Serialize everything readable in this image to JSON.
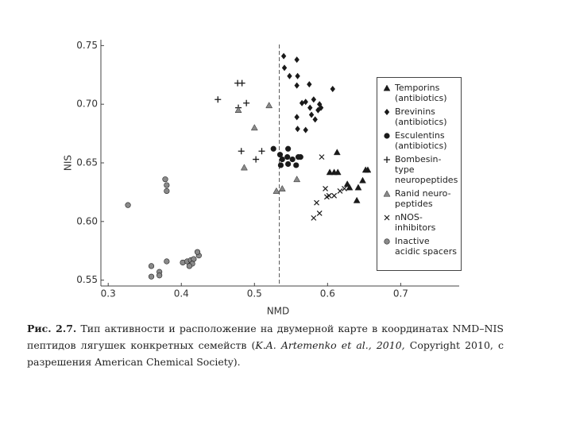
{
  "chart_data": {
    "type": "scatter",
    "xlabel": "NMD",
    "ylabel": "NIS",
    "xlim": [
      0.29,
      0.78
    ],
    "ylim": [
      0.545,
      0.755
    ],
    "xticks": [
      {
        "value": 0.3,
        "label": "0.3"
      },
      {
        "value": 0.4,
        "label": "0.4"
      },
      {
        "value": 0.5,
        "label": "0.5"
      },
      {
        "value": 0.6,
        "label": "0.6"
      },
      {
        "value": 0.7,
        "label": "0.7"
      }
    ],
    "yticks": [
      {
        "value": 0.55,
        "label": "0.55"
      },
      {
        "value": 0.6,
        "label": "0.60"
      },
      {
        "value": 0.65,
        "label": "0.65"
      },
      {
        "value": 0.7,
        "label": "0.70"
      },
      {
        "value": 0.75,
        "label": "0.75"
      }
    ],
    "vline": 0.534,
    "series": [
      {
        "name": "Temporins (antibiotics)",
        "marker": "triangle",
        "color": "#1a1a1a",
        "x": [
          0.613,
          0.603,
          0.609,
          0.614,
          0.627,
          0.63,
          0.642,
          0.648,
          0.652,
          0.655,
          0.64
        ],
        "values": [
          0.659,
          0.642,
          0.642,
          0.642,
          0.632,
          0.629,
          0.629,
          0.635,
          0.644,
          0.644,
          0.618
        ]
      },
      {
        "name": "Brevinins (antibiotics)",
        "marker": "diamond",
        "color": "#1a1a1a",
        "x": [
          0.54,
          0.558,
          0.541,
          0.548,
          0.559,
          0.558,
          0.575,
          0.607,
          0.565,
          0.57,
          0.576,
          0.581,
          0.587,
          0.589,
          0.578,
          0.558,
          0.559,
          0.57,
          0.583,
          0.591
        ],
        "values": [
          0.741,
          0.738,
          0.731,
          0.724,
          0.724,
          0.716,
          0.717,
          0.713,
          0.701,
          0.702,
          0.697,
          0.704,
          0.695,
          0.7,
          0.691,
          0.689,
          0.679,
          0.678,
          0.687,
          0.697
        ]
      },
      {
        "name": "Esculentins (antibiotics)",
        "marker": "circle",
        "color": "#1a1a1a",
        "x": [
          0.526,
          0.535,
          0.538,
          0.545,
          0.552,
          0.56,
          0.546,
          0.557,
          0.536,
          0.563,
          0.546
        ],
        "values": [
          0.662,
          0.657,
          0.653,
          0.655,
          0.653,
          0.655,
          0.649,
          0.648,
          0.648,
          0.655,
          0.662
        ]
      },
      {
        "name": "Bombesin-type neuropeptides",
        "marker": "plus",
        "color": "#1a1a1a",
        "x": [
          0.477,
          0.483,
          0.45,
          0.478,
          0.489,
          0.482,
          0.51,
          0.502
        ],
        "values": [
          0.718,
          0.718,
          0.704,
          0.697,
          0.701,
          0.66,
          0.66,
          0.653
        ]
      },
      {
        "name": "Ranid neuro-peptides",
        "marker": "triangle",
        "color": "#8a8a8a",
        "x": [
          0.478,
          0.52,
          0.5,
          0.486,
          0.53,
          0.538,
          0.558
        ],
        "values": [
          0.695,
          0.699,
          0.68,
          0.646,
          0.626,
          0.628,
          0.636
        ]
      },
      {
        "name": "nNOS-inhibitors",
        "marker": "cross",
        "color": "#1a1a1a",
        "x": [
          0.592,
          0.597,
          0.599,
          0.602,
          0.609,
          0.617,
          0.623,
          0.585,
          0.589,
          0.581
        ],
        "values": [
          0.655,
          0.628,
          0.621,
          0.622,
          0.622,
          0.626,
          0.628,
          0.616,
          0.607,
          0.603
        ]
      },
      {
        "name": "Inactive acidic spacers",
        "marker": "circle",
        "color": "#8a8a8a",
        "x": [
          0.327,
          0.378,
          0.38,
          0.38,
          0.359,
          0.359,
          0.37,
          0.37,
          0.38,
          0.402,
          0.408,
          0.413,
          0.417,
          0.424,
          0.422,
          0.415,
          0.411
        ],
        "values": [
          0.614,
          0.636,
          0.631,
          0.626,
          0.562,
          0.553,
          0.557,
          0.554,
          0.566,
          0.565,
          0.566,
          0.567,
          0.568,
          0.571,
          0.574,
          0.564,
          0.562
        ]
      }
    ]
  },
  "caption": {
    "label": "Рис. 2.7.",
    "text": "Тип активности и расположение на двумерной карте в координатах NMD–NIS пептидов лягушек конкретных семейств (",
    "citation": "K.A. Artemenko et al., 2010,",
    "tail": " Copyright 2010, с разрешения American Chemical Society)."
  }
}
